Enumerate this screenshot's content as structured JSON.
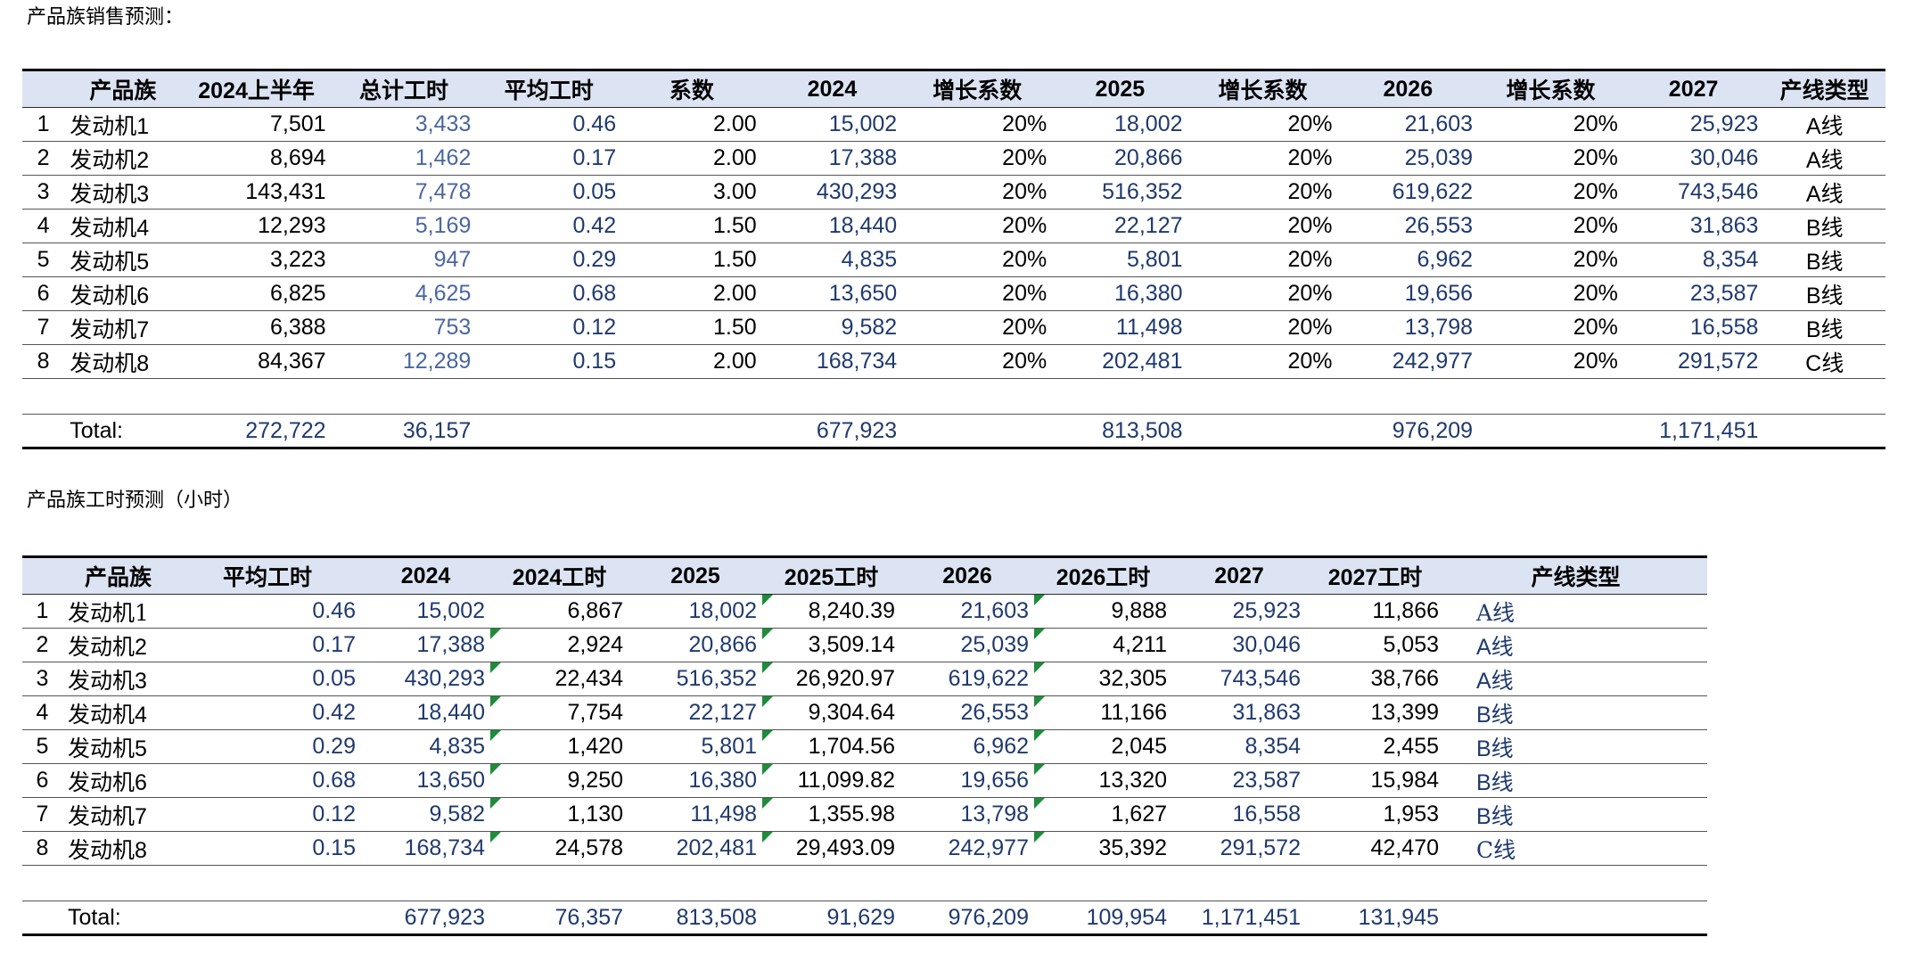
{
  "sales": {
    "title": "产品族销售预测：",
    "headers": [
      "",
      "产品族",
      "2024上半年",
      "总计工时",
      "平均工时",
      "系数",
      "2024",
      "增长系数",
      "2025",
      "增长系数",
      "2026",
      "增长系数",
      "2027",
      "产线类型"
    ],
    "rows": [
      [
        "1",
        "发动机1",
        "7,501",
        "3,433",
        "0.46",
        "2.00",
        "15,002",
        "20%",
        "18,002",
        "20%",
        "21,603",
        "20%",
        "25,923",
        "A线"
      ],
      [
        "2",
        "发动机2",
        "8,694",
        "1,462",
        "0.17",
        "2.00",
        "17,388",
        "20%",
        "20,866",
        "20%",
        "25,039",
        "20%",
        "30,046",
        "A线"
      ],
      [
        "3",
        "发动机3",
        "143,431",
        "7,478",
        "0.05",
        "3.00",
        "430,293",
        "20%",
        "516,352",
        "20%",
        "619,622",
        "20%",
        "743,546",
        "A线"
      ],
      [
        "4",
        "发动机4",
        "12,293",
        "5,169",
        "0.42",
        "1.50",
        "18,440",
        "20%",
        "22,127",
        "20%",
        "26,553",
        "20%",
        "31,863",
        "B线"
      ],
      [
        "5",
        "发动机5",
        "3,223",
        "947",
        "0.29",
        "1.50",
        "4,835",
        "20%",
        "5,801",
        "20%",
        "6,962",
        "20%",
        "8,354",
        "B线"
      ],
      [
        "6",
        "发动机6",
        "6,825",
        "4,625",
        "0.68",
        "2.00",
        "13,650",
        "20%",
        "16,380",
        "20%",
        "19,656",
        "20%",
        "23,587",
        "B线"
      ],
      [
        "7",
        "发动机7",
        "6,388",
        "753",
        "0.12",
        "1.50",
        "9,582",
        "20%",
        "11,498",
        "20%",
        "13,798",
        "20%",
        "16,558",
        "B线"
      ],
      [
        "8",
        "发动机8",
        "84,367",
        "12,289",
        "0.15",
        "2.00",
        "168,734",
        "20%",
        "202,481",
        "20%",
        "242,977",
        "20%",
        "291,572",
        "C线"
      ]
    ],
    "total": [
      "",
      "Total:",
      "272,722",
      "36,157",
      "",
      "",
      "677,923",
      "",
      "813,508",
      "",
      "976,209",
      "",
      "1,171,451",
      ""
    ]
  },
  "hours": {
    "title": "产品族工时预测（小时）",
    "headers": [
      "",
      "产品族",
      "平均工时",
      "2024",
      "2024工时",
      "2025",
      "2025工时",
      "2026",
      "2026工时",
      "2027",
      "2027工时",
      "产线类型"
    ],
    "rows": [
      [
        "1",
        "发动机1",
        "0.46",
        "15,002",
        "6,867",
        "18,002",
        "8,240.39",
        "21,603",
        "9,888",
        "25,923",
        "11,866",
        "A线"
      ],
      [
        "2",
        "发动机2",
        "0.17",
        "17,388",
        "2,924",
        "20,866",
        "3,509.14",
        "25,039",
        "4,211",
        "30,046",
        "5,053",
        "A线"
      ],
      [
        "3",
        "发动机3",
        "0.05",
        "430,293",
        "22,434",
        "516,352",
        "26,920.97",
        "619,622",
        "32,305",
        "743,546",
        "38,766",
        "A线"
      ],
      [
        "4",
        "发动机4",
        "0.42",
        "18,440",
        "7,754",
        "22,127",
        "9,304.64",
        "26,553",
        "11,166",
        "31,863",
        "13,399",
        "B线"
      ],
      [
        "5",
        "发动机5",
        "0.29",
        "4,835",
        "1,420",
        "5,801",
        "1,704.56",
        "6,962",
        "2,045",
        "8,354",
        "2,455",
        "B线"
      ],
      [
        "6",
        "发动机6",
        "0.68",
        "13,650",
        "9,250",
        "16,380",
        "11,099.82",
        "19,656",
        "13,320",
        "23,587",
        "15,984",
        "B线"
      ],
      [
        "7",
        "发动机7",
        "0.12",
        "9,582",
        "1,130",
        "11,498",
        "1,355.98",
        "13,798",
        "1,627",
        "16,558",
        "1,953",
        "B线"
      ],
      [
        "8",
        "发动机8",
        "0.15",
        "168,734",
        "24,578",
        "202,481",
        "29,493.09",
        "242,977",
        "35,392",
        "291,572",
        "42,470",
        "C线"
      ]
    ],
    "total": [
      "",
      "Total:",
      "",
      "677,923",
      "76,357",
      "813,508",
      "91,629",
      "976,209",
      "109,954",
      "1,171,451",
      "131,945",
      ""
    ]
  }
}
